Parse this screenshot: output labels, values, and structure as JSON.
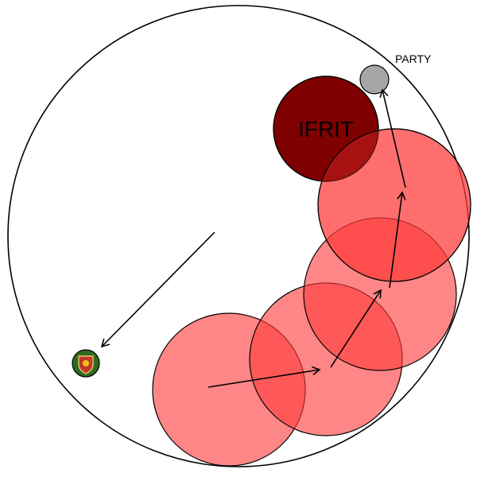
{
  "labels": {
    "boss": "IFRIT",
    "party": "PARTY"
  },
  "colors": {
    "aoe_fill": "#ff3b3b",
    "aoe_fill_opacity": 0.62,
    "boss_fill": "#7f0000",
    "party_fill": "#a6a6a6",
    "arena_stroke": "#000000",
    "arrow_stroke": "#000000",
    "marker_ring": "#2e6b1f",
    "marker_inner": "#c0392b"
  },
  "icons": {
    "waymark": "green-badge-marker-icon"
  }
}
